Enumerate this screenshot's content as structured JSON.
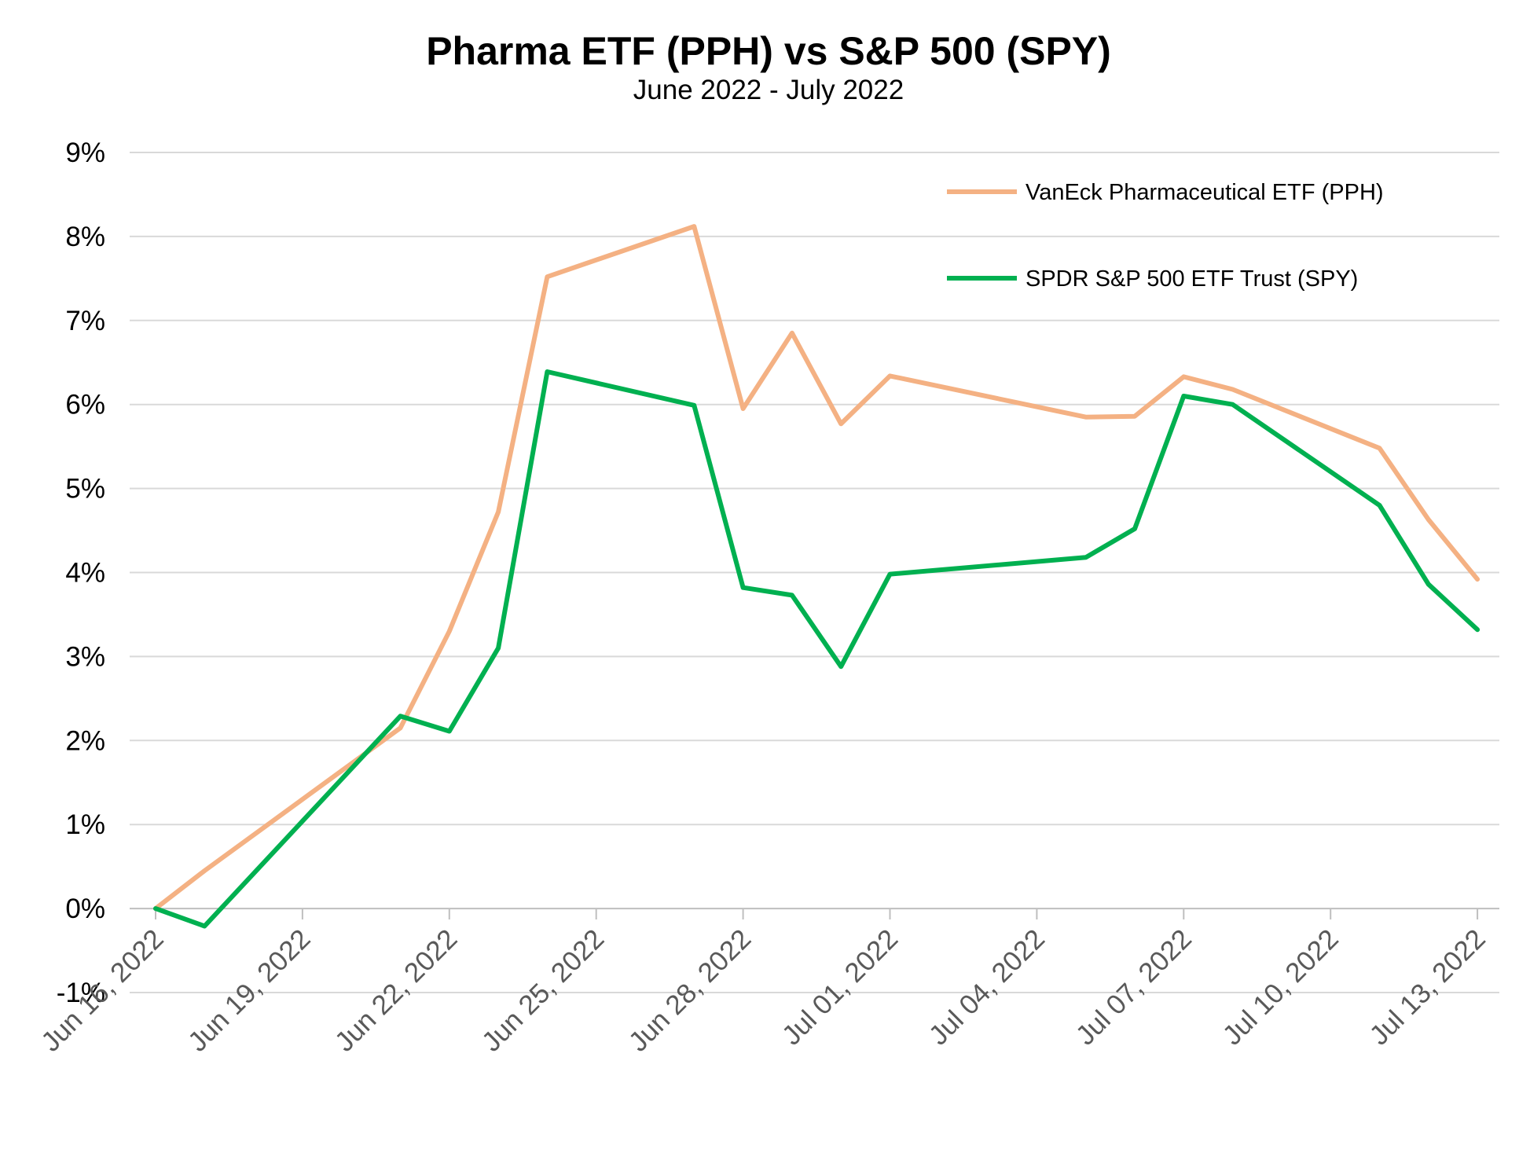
{
  "chart_data": {
    "type": "line",
    "title": "Pharma ETF (PPH) vs S&P 500 (SPY)",
    "subtitle": "June 2022 - July 2022",
    "xlabel": "",
    "ylabel": "",
    "x_tick_labels": [
      "Jun 16, 2022",
      "Jun 19, 2022",
      "Jun 22, 2022",
      "Jun 25, 2022",
      "Jun 28, 2022",
      "Jul 01, 2022",
      "Jul 04, 2022",
      "Jul 07, 2022",
      "Jul 10, 2022",
      "Jul 13, 2022"
    ],
    "x_tick_dates": [
      "2022-06-16",
      "2022-06-19",
      "2022-06-22",
      "2022-06-25",
      "2022-06-28",
      "2022-07-01",
      "2022-07-04",
      "2022-07-07",
      "2022-07-10",
      "2022-07-13"
    ],
    "x_range": [
      "2022-06-16",
      "2022-07-14"
    ],
    "y_tick_labels": [
      "-1%",
      "0%",
      "1%",
      "2%",
      "3%",
      "4%",
      "5%",
      "6%",
      "7%",
      "8%",
      "9%"
    ],
    "y_tick_values": [
      -1,
      0,
      1,
      2,
      3,
      4,
      5,
      6,
      7,
      8,
      9
    ],
    "ylim": [
      -1,
      9
    ],
    "y_unit": "%",
    "grid": "horizontal",
    "legend_position": "top-right",
    "x": [
      "2022-06-16",
      "2022-06-17",
      "2022-06-21",
      "2022-06-22",
      "2022-06-23",
      "2022-06-24",
      "2022-06-27",
      "2022-06-28",
      "2022-06-29",
      "2022-06-30",
      "2022-07-01",
      "2022-07-05",
      "2022-07-06",
      "2022-07-07",
      "2022-07-08",
      "2022-07-11",
      "2022-07-12",
      "2022-07-13"
    ],
    "series": [
      {
        "name": "VanEck Pharmaceutical ETF (PPH)",
        "color": "#f4b183",
        "values": [
          0.0,
          0.45,
          2.15,
          3.3,
          4.72,
          7.52,
          8.12,
          5.95,
          6.85,
          5.77,
          6.34,
          5.85,
          5.86,
          6.33,
          6.18,
          5.48,
          4.63,
          3.92
        ]
      },
      {
        "name": "SPDR S&P 500 ETF Trust (SPY)",
        "color": "#00b050",
        "values": [
          0.0,
          -0.21,
          2.29,
          2.11,
          3.1,
          6.39,
          5.99,
          3.82,
          3.73,
          2.88,
          3.98,
          4.18,
          4.52,
          6.1,
          6.0,
          4.8,
          3.86,
          3.32
        ]
      }
    ]
  }
}
